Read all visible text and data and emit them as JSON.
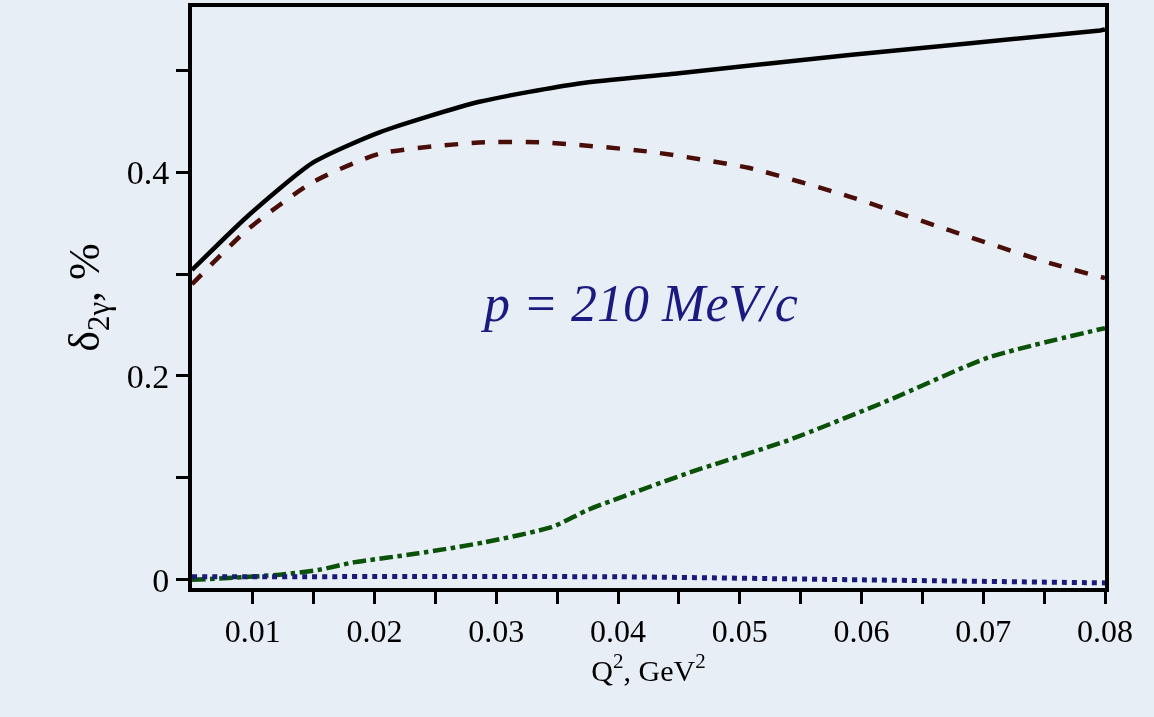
{
  "chart_data": {
    "type": "line",
    "xlabel": "Q$^{2}$, GeV$^{2}$",
    "ylabel": "δ$_{2γ}$, %",
    "annotations": [
      "p = 210 MeV/c"
    ],
    "xlim": [
      0.005,
      0.08
    ],
    "ylim": [
      -0.008,
      0.562
    ],
    "xticks": [
      0.01,
      {
        "value": 0.015,
        "label": null
      },
      0.02,
      {
        "value": 0.025,
        "label": null
      },
      0.03,
      {
        "value": 0.035,
        "label": null
      },
      0.04,
      {
        "value": 0.045,
        "label": null
      },
      0.05,
      {
        "value": 0.055,
        "label": null
      },
      0.06,
      {
        "value": 0.065,
        "label": null
      },
      0.07,
      {
        "value": 0.075,
        "label": null
      },
      0.08
    ],
    "yticks": [
      0,
      {
        "value": 0.1,
        "label": null
      },
      0.2,
      {
        "value": 0.3,
        "label": null
      },
      0.4,
      {
        "value": 0.5,
        "label": null
      }
    ],
    "grid": false,
    "marker": "none",
    "series": [
      {
        "color": "#000000",
        "line_style": "solid",
        "x": [
          0.005,
          0.0095,
          0.0149,
          0.0204,
          0.0286,
          0.0368,
          0.045,
          0.059,
          0.0796,
          0.08
        ],
        "values": [
          0.304,
          0.356,
          0.409,
          0.439,
          0.469,
          0.487,
          0.497,
          0.515,
          0.539,
          0.54
        ]
      },
      {
        "color": "#4a0e08",
        "line_style": "dashed",
        "x": [
          0.005,
          0.0095,
          0.0149,
          0.0204,
          0.0286,
          0.034,
          0.0426,
          0.0508,
          0.059,
          0.0672,
          0.0754,
          0.08
        ],
        "values": [
          0.29,
          0.343,
          0.39,
          0.418,
          0.429,
          0.429,
          0.42,
          0.404,
          0.376,
          0.343,
          0.311,
          0.296
        ]
      },
      {
        "color": "#0a5208",
        "line_style": "dashdot",
        "x": [
          0.005,
          0.0122,
          0.0155,
          0.0182,
          0.0236,
          0.0291,
          0.0346,
          0.0376,
          0.0458,
          0.054,
          0.0622,
          0.0704,
          0.08
        ],
        "values": [
          0,
          0.005,
          0.01,
          0.017,
          0.026,
          0.037,
          0.052,
          0.069,
          0.105,
          0.137,
          0.176,
          0.218,
          0.247
        ]
      },
      {
        "color": "#1a1a7a",
        "line_style": "dotted",
        "x": [
          0.005,
          0.04,
          0.06,
          0.08
        ],
        "values": [
          0.003,
          0.003,
          0,
          -0.003
        ]
      }
    ]
  }
}
